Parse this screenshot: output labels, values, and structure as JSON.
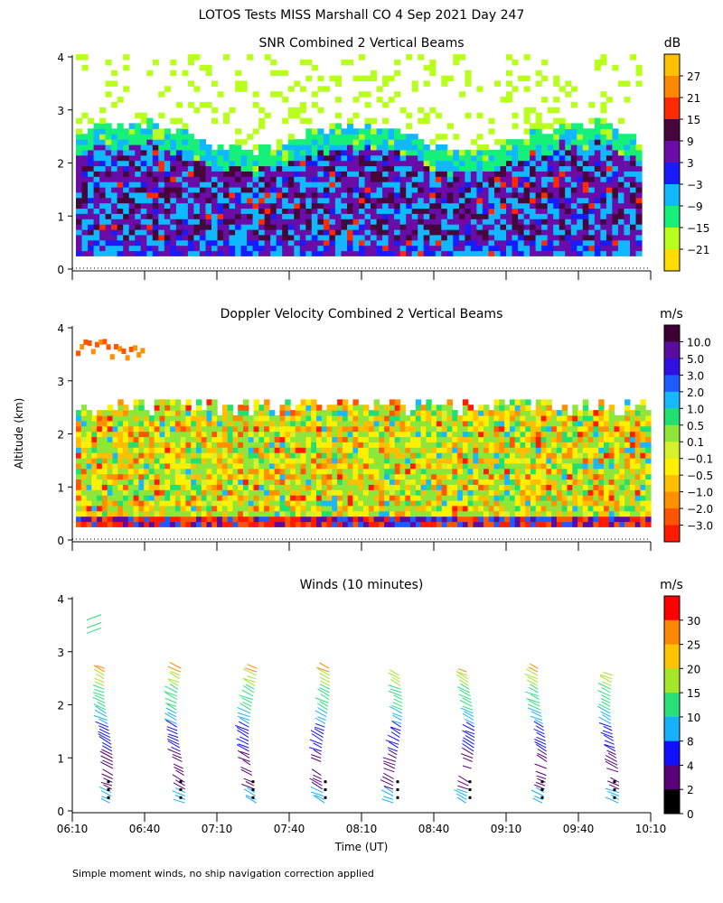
{
  "figure": {
    "title": "LOTOS Tests MISS Marshall CO   4 Sep 2021 Day 247",
    "ylabel": "Altitude (km)",
    "xlabel": "Time (UT)",
    "footnote": "Simple moment winds, no ship navigation correction applied",
    "x_ticks": [
      "06:10",
      "06:40",
      "07:10",
      "07:40",
      "08:10",
      "08:40",
      "09:10",
      "09:40",
      "10:10"
    ],
    "y_ticks": [
      "0",
      "1",
      "2",
      "3",
      "4"
    ]
  },
  "chart_data": [
    {
      "type": "heatmap",
      "title": "SNR Combined 2 Vertical Beams",
      "ylabel": "Altitude (km)",
      "xlim": [
        "06:10",
        "10:10"
      ],
      "ylim": [
        0,
        4
      ],
      "colorbar": {
        "unit": "dB",
        "levels": [
          "27",
          "21",
          "15",
          "9",
          "3",
          "−3",
          "−9",
          "−15",
          "−21"
        ],
        "colors": [
          "#ffc000",
          "#ff8800",
          "#ff2a00",
          "#46063c",
          "#6a0ca8",
          "#1a1aff",
          "#10b8ff",
          "#16f07a",
          "#b8ff1e",
          "#ffdd00"
        ]
      },
      "profile": {
        "heights_km": [
          0.3,
          0.7,
          1.1,
          1.5,
          1.9,
          2.3,
          2.7,
          3.1,
          3.5,
          3.9
        ],
        "typical_snr_db": [
          -3,
          3,
          6,
          3,
          3,
          -9,
          -21,
          -21,
          -21,
          -21
        ]
      }
    },
    {
      "type": "heatmap",
      "title": "Doppler Velocity Combined 2 Vertical Beams",
      "ylabel": "Altitude (km)",
      "xlim": [
        "06:10",
        "10:10"
      ],
      "ylim": [
        0,
        4
      ],
      "colorbar": {
        "unit": "m/s",
        "levels": [
          "10.0",
          "5.0",
          "3.0",
          "2.0",
          "1.0",
          "0.5",
          "0.1",
          "−0.1",
          "−0.5",
          "−1.0",
          "−2.0",
          "−3.0"
        ],
        "colors": [
          "#3d0032",
          "#5a0ba0",
          "#3010e0",
          "#1f5cff",
          "#18b8ff",
          "#22e070",
          "#8ee63a",
          "#d6f02a",
          "#fff000",
          "#ffbf00",
          "#ff9000",
          "#ff5400",
          "#ff1a00"
        ]
      }
    },
    {
      "type": "scatter",
      "title": "Winds (10 minutes)",
      "ylabel": "Altitude (km)",
      "xlabel": "Time (UT)",
      "xlim": [
        "06:10",
        "10:10"
      ],
      "ylim": [
        0,
        4
      ],
      "colorbar": {
        "unit": "m/s",
        "levels": [
          "30",
          "25",
          "20",
          "15",
          "10",
          "8",
          "4",
          "2",
          "0"
        ],
        "colors": [
          "#ff0000",
          "#ff8800",
          "#ffc400",
          "#a6e62a",
          "#2ae07a",
          "#16b0ff",
          "#1010ff",
          "#5a0078",
          "#000000"
        ]
      },
      "profile_times": [
        "06:40",
        "07:10",
        "07:40",
        "08:10",
        "08:40",
        "09:10",
        "09:40",
        "10:10"
      ]
    }
  ]
}
